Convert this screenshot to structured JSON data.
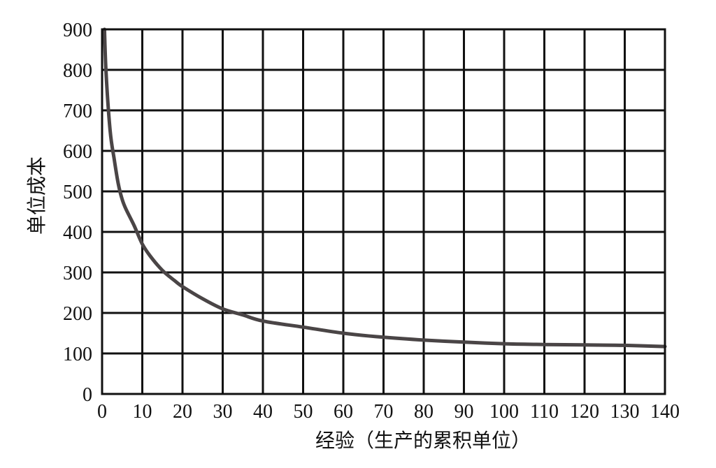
{
  "chart_data": {
    "type": "line",
    "title": "",
    "xlabel": "经验（生产的累积单位）",
    "ylabel": "单位成本",
    "xlim": [
      0,
      140
    ],
    "ylim": [
      0,
      900
    ],
    "x_ticks": [
      0,
      10,
      20,
      30,
      40,
      50,
      60,
      70,
      80,
      90,
      100,
      110,
      120,
      130,
      140
    ],
    "y_ticks": [
      0,
      100,
      200,
      300,
      400,
      500,
      600,
      700,
      800,
      900
    ],
    "grid": true,
    "legend": "none",
    "line_color": "#4a4546",
    "series": [
      {
        "x": [
          0.6,
          1,
          2,
          3,
          4,
          5,
          6,
          8,
          10,
          12,
          15,
          18,
          20,
          25,
          30,
          35,
          40,
          50,
          60,
          70,
          80,
          90,
          100,
          110,
          120,
          130,
          140
        ],
        "y": [
          900,
          790,
          650,
          580,
          520,
          480,
          455,
          415,
          370,
          340,
          305,
          280,
          265,
          235,
          210,
          195,
          180,
          165,
          150,
          140,
          133,
          128,
          124,
          122,
          121,
          120,
          117
        ]
      }
    ]
  }
}
